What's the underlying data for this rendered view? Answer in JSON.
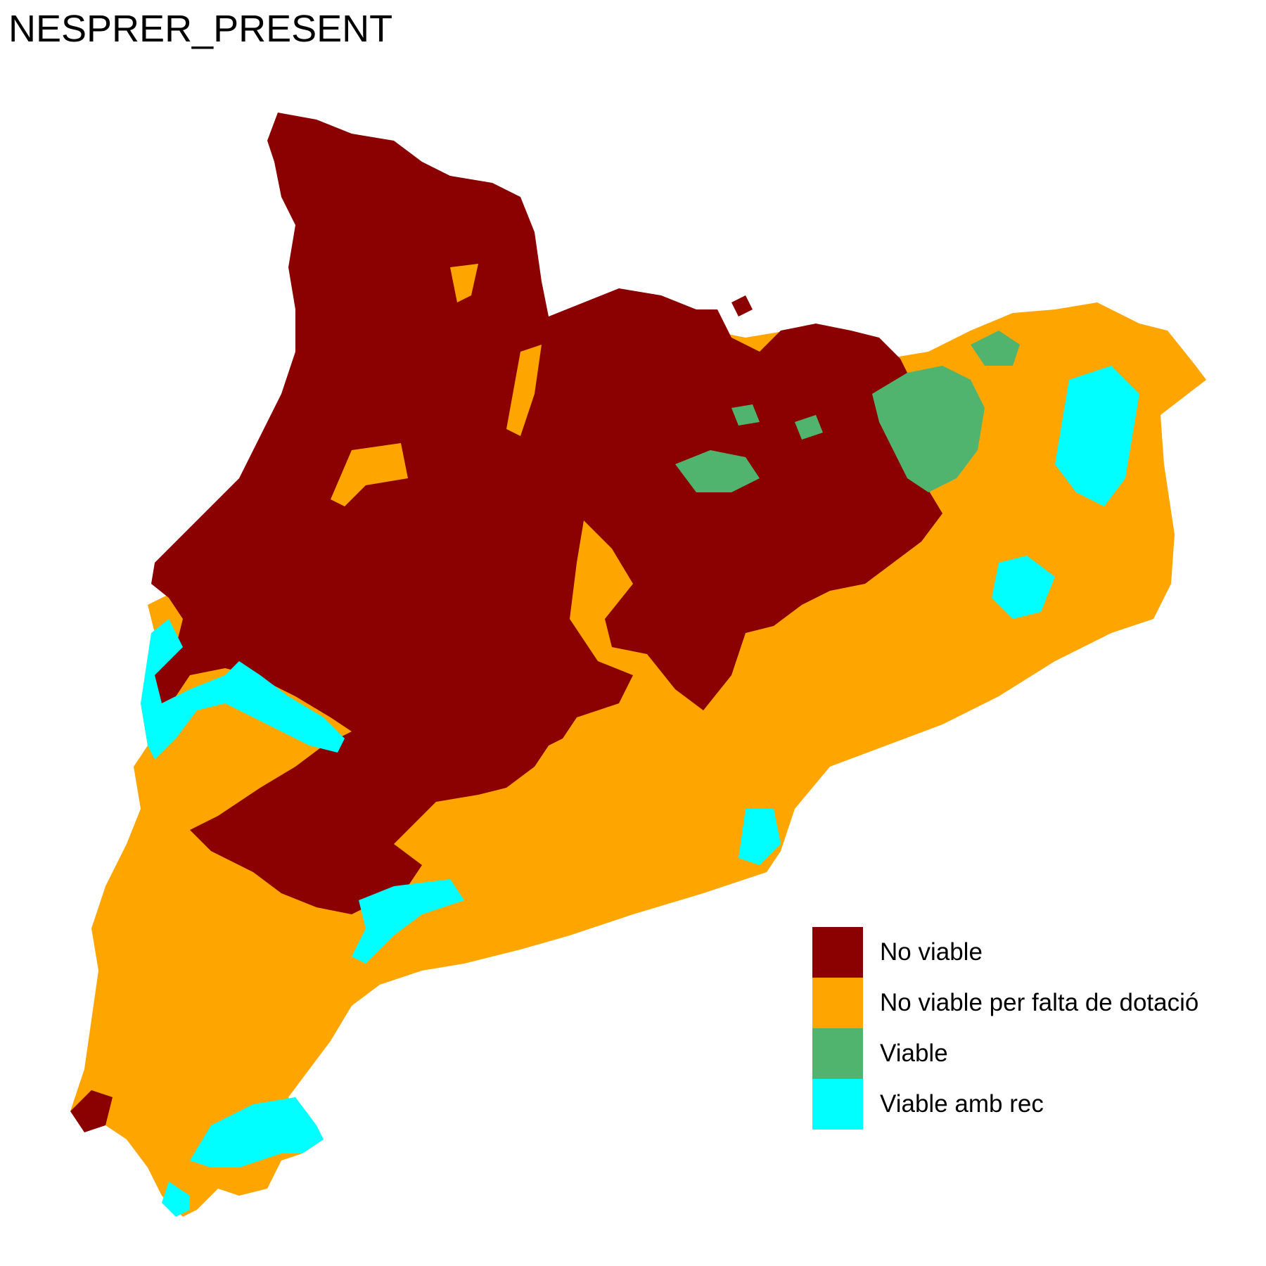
{
  "title": "NESPRER_PRESENT",
  "legend": {
    "items": [
      {
        "label": "No viable",
        "color": "#8B0000"
      },
      {
        "label": "No viable per falta de dotació",
        "color": "#FFA500"
      },
      {
        "label": "Viable",
        "color": "#50B46E"
      },
      {
        "label": "Viable amb rec",
        "color": "#00FFFF"
      }
    ]
  }
}
